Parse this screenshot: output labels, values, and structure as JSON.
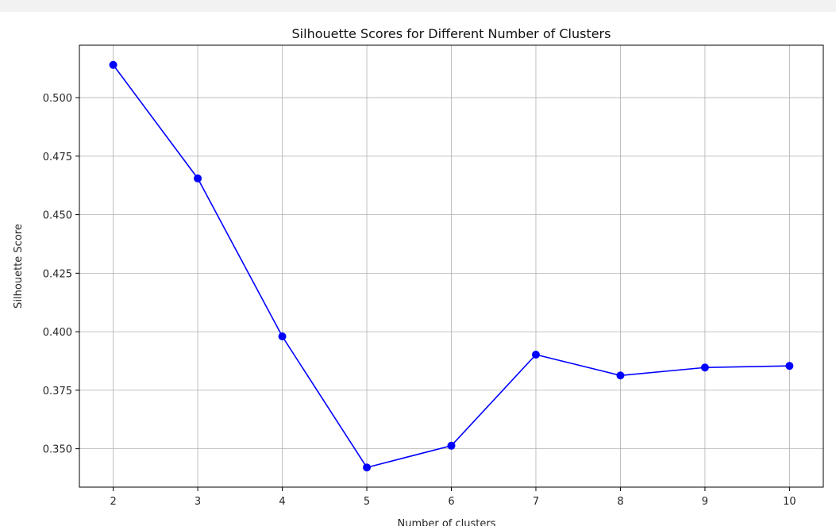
{
  "chart_data": {
    "type": "line",
    "title": "Silhouette Scores for Different Number of Clusters",
    "xlabel": "Number of clusters",
    "ylabel": "Silhouette Score",
    "x": [
      2,
      3,
      4,
      5,
      6,
      7,
      8,
      9,
      10
    ],
    "series": [
      {
        "name": "Silhouette Score",
        "values": [
          0.514,
          0.4655,
          0.398,
          0.342,
          0.3513,
          0.3902,
          0.3813,
          0.3847,
          0.3854
        ],
        "color": "#0000ff",
        "marker": "o"
      }
    ],
    "xticks": [
      "2",
      "3",
      "4",
      "5",
      "6",
      "7",
      "8",
      "9",
      "10"
    ],
    "yticks": [
      "0.350",
      "0.375",
      "0.400",
      "0.425",
      "0.450",
      "0.475",
      "0.500"
    ],
    "ytick_values": [
      0.35,
      0.375,
      0.4,
      0.425,
      0.45,
      0.475,
      0.5
    ],
    "xlim": [
      1.6,
      10.4
    ],
    "ylim": [
      0.3336,
      0.5224
    ],
    "grid": true
  }
}
